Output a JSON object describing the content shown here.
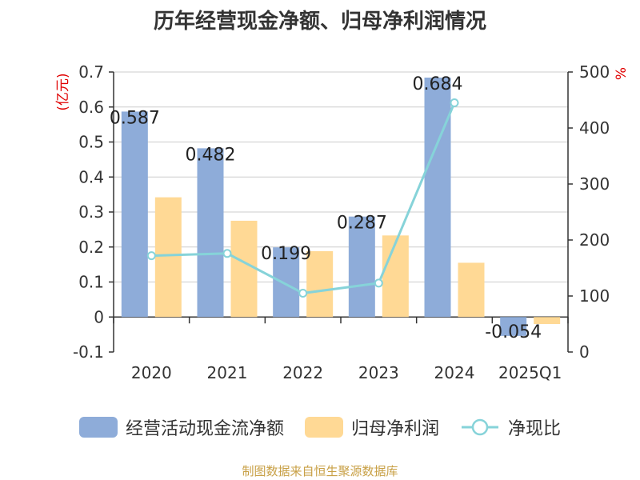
{
  "title": "历年经营现金净额、归母净利润情况",
  "source_note": "制图数据来自恒生聚源数据库",
  "colors": {
    "cashflow": "#8eacd9",
    "profit": "#ffd995",
    "ratio": "#86d3d9",
    "axis_unit": "#e00000"
  },
  "chart_data": {
    "type": "bar",
    "categories": [
      "2020",
      "2021",
      "2022",
      "2023",
      "2024",
      "2025Q1"
    ],
    "series": [
      {
        "name": "经营活动现金流净额",
        "type": "bar",
        "axis": "left",
        "values": [
          0.587,
          0.482,
          0.199,
          0.287,
          0.684,
          -0.054
        ],
        "data_labels": [
          "0.587",
          "0.482",
          "0.199",
          "0.287",
          "0.684",
          "-0.054"
        ]
      },
      {
        "name": "归母净利润",
        "type": "bar",
        "axis": "left",
        "values": [
          0.342,
          0.275,
          0.188,
          0.233,
          0.155,
          -0.02
        ]
      },
      {
        "name": "净现比",
        "type": "line",
        "axis": "right",
        "values": [
          172,
          176,
          105,
          123,
          445,
          null
        ]
      }
    ],
    "y_left": {
      "unit": "(亿元)",
      "ylim": [
        -0.1,
        0.7
      ],
      "ticks": [
        "-0.1",
        "0",
        "0.1",
        "0.2",
        "0.3",
        "0.4",
        "0.5",
        "0.6",
        "0.7"
      ]
    },
    "y_right": {
      "unit": "%",
      "ylim": [
        0,
        500
      ],
      "ticks": [
        "0",
        "100",
        "200",
        "300",
        "400",
        "500"
      ]
    },
    "grid": true,
    "legend_position": "bottom"
  }
}
